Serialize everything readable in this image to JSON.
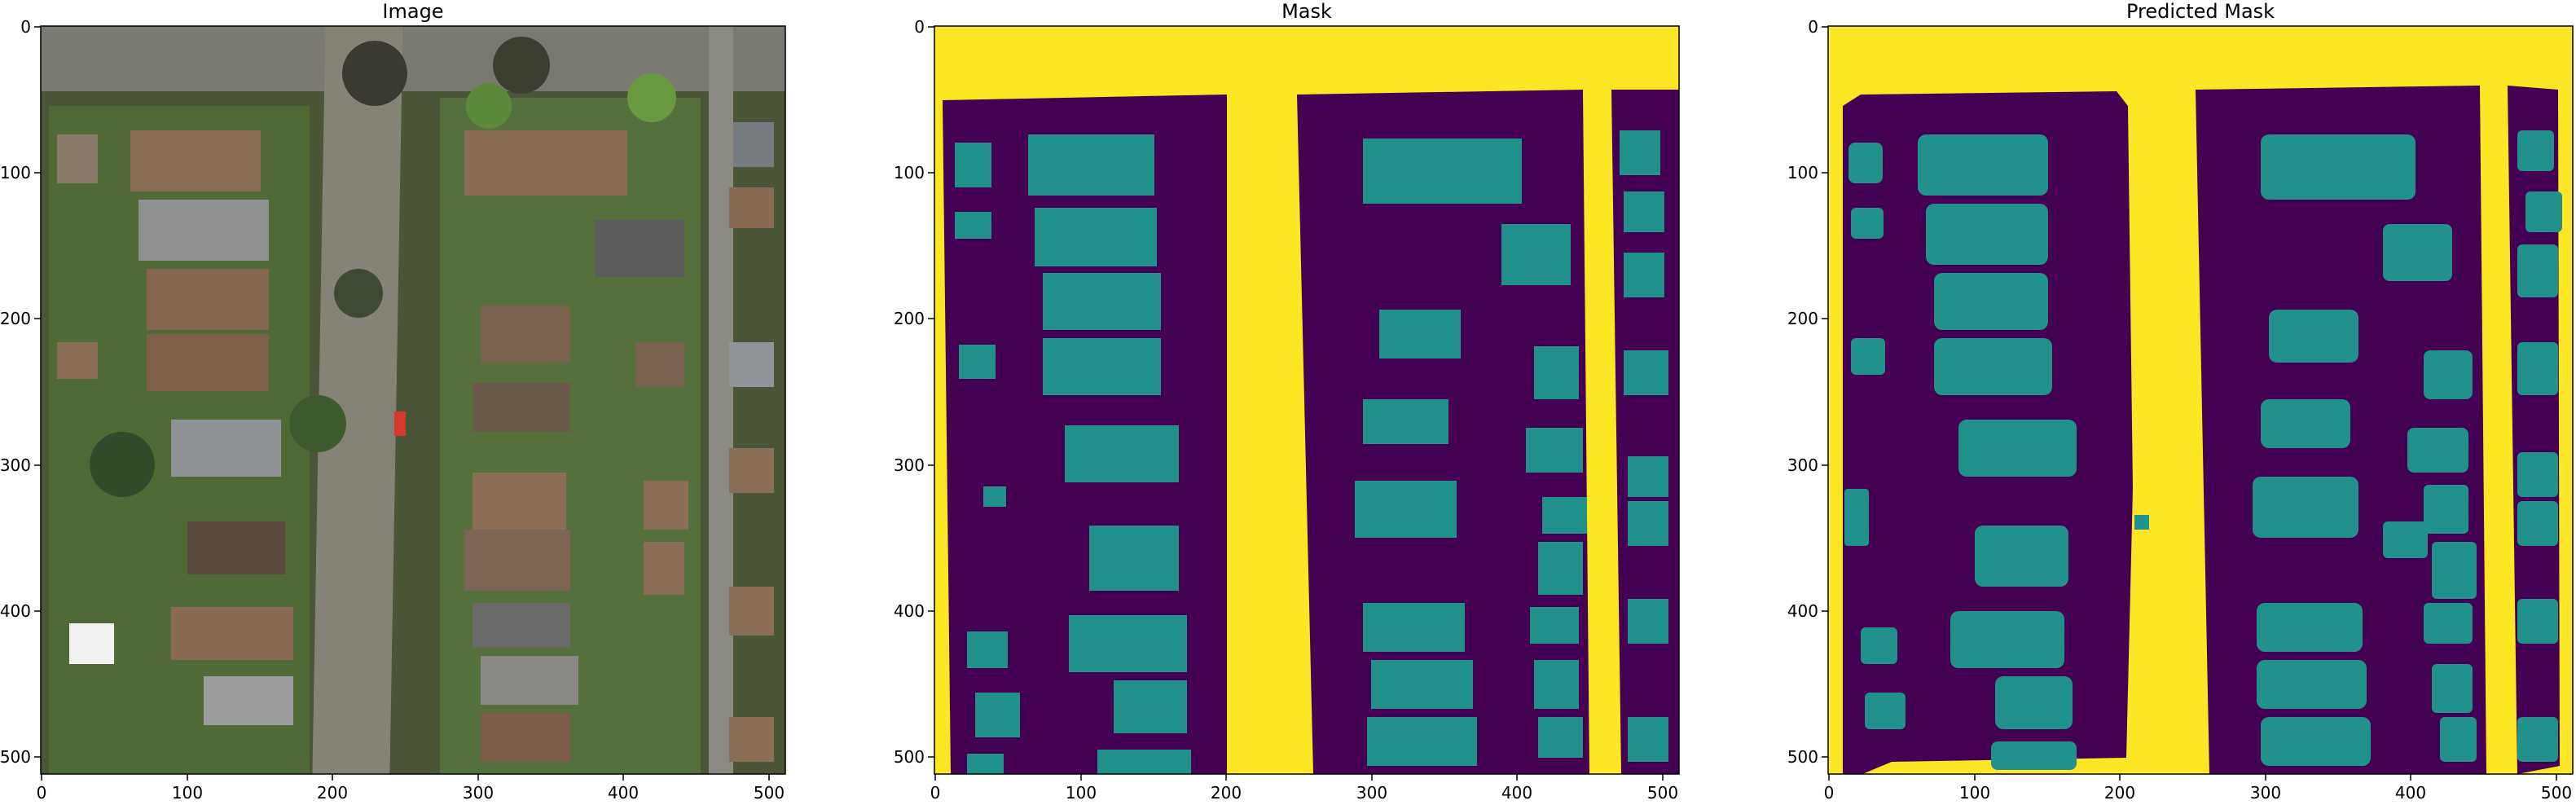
{
  "figure": {
    "panels": [
      {
        "title": "Image",
        "x_ticks": [
          "0",
          "100",
          "200",
          "300",
          "400",
          "500"
        ],
        "y_ticks": [
          "0",
          "100",
          "200",
          "300",
          "400",
          "500"
        ]
      },
      {
        "title": "Mask",
        "x_ticks": [
          "0",
          "100",
          "200",
          "300",
          "400",
          "500"
        ],
        "y_ticks": [
          "0",
          "100",
          "200",
          "300",
          "400",
          "500"
        ]
      },
      {
        "title": "Predicted Mask",
        "x_ticks": [
          "0",
          "100",
          "200",
          "300",
          "400",
          "500"
        ],
        "y_ticks": [
          "0",
          "100",
          "200",
          "300",
          "400",
          "500"
        ]
      }
    ],
    "colors": {
      "mask_background": "#440154",
      "mask_building": "#21918c",
      "mask_road": "#fde725"
    }
  }
}
